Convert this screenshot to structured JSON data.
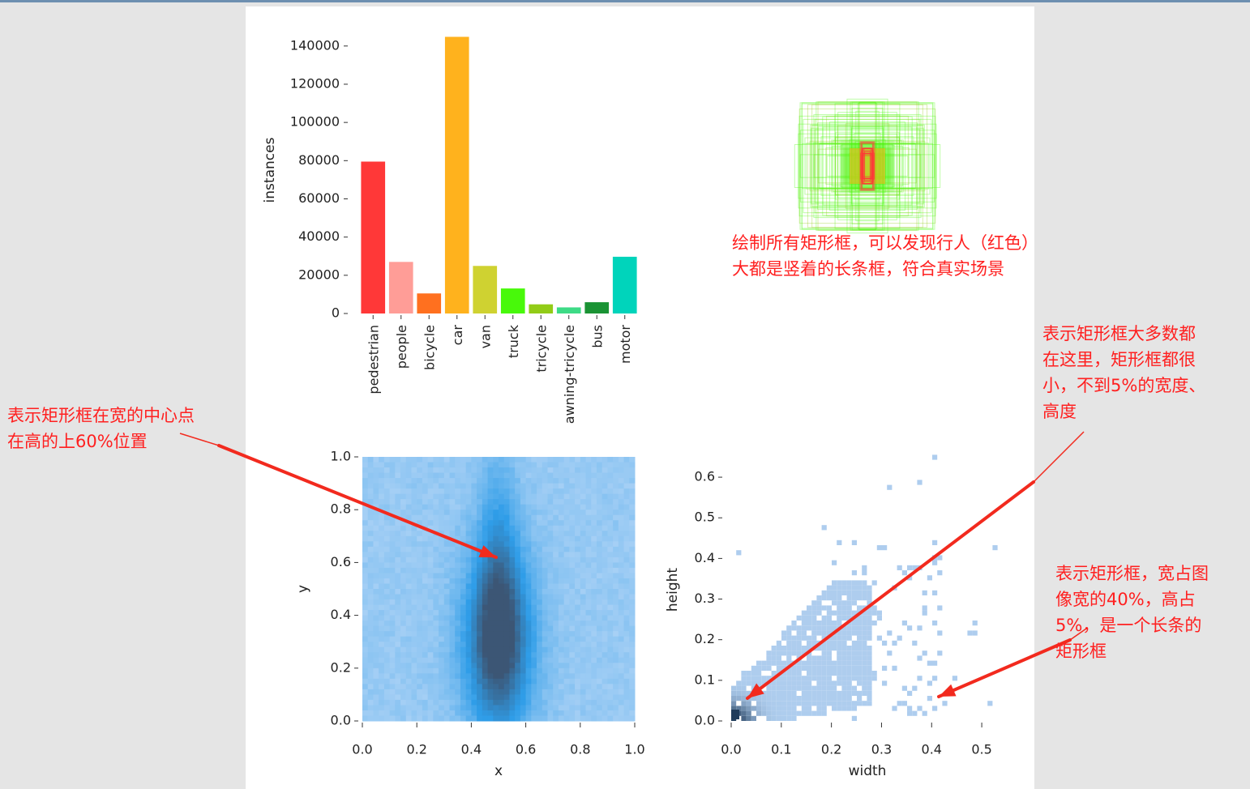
{
  "chart_data": [
    {
      "type": "bar",
      "ylabel": "instances",
      "categories": [
        "pedestrian",
        "people",
        "bicycle",
        "car",
        "van",
        "truck",
        "tricycle",
        "awning-tricycle",
        "bus",
        "motor"
      ],
      "values": [
        79500,
        27000,
        10500,
        144800,
        24900,
        13100,
        4800,
        3200,
        5900,
        29700
      ],
      "colors": [
        "#ff3838",
        "#ff9d97",
        "#ff701f",
        "#ffb21d",
        "#cfd231",
        "#48f90a",
        "#92cc17",
        "#3ddb86",
        "#1a9334",
        "#00d4bb"
      ],
      "ylim": [
        0,
        145000
      ],
      "yticks": [
        0,
        20000,
        40000,
        60000,
        80000,
        100000,
        120000,
        140000
      ]
    },
    {
      "type": "other",
      "description_colors": [
        "#ff3838",
        "#48f90a",
        "#ffb21d",
        "#92cc17"
      ]
    },
    {
      "type": "heatmap",
      "xlabel": "x",
      "ylabel": "y",
      "xlim": [
        0,
        1
      ],
      "ylim": [
        0,
        1
      ],
      "xticks": [
        0.0,
        0.2,
        0.4,
        0.6,
        0.8,
        1.0
      ],
      "yticks": [
        0.0,
        0.2,
        0.4,
        0.6,
        0.8,
        1.0
      ],
      "peak": {
        "x": 0.5,
        "y": 0.3
      },
      "colors": {
        "low": "#a7d0f5",
        "mid": "#2f9de8",
        "high": "#3c5675"
      }
    },
    {
      "type": "heatmap",
      "xlabel": "width",
      "ylabel": "height",
      "xlim": [
        0,
        0.55
      ],
      "ylim": [
        0,
        0.65
      ],
      "xticks": [
        0.0,
        0.1,
        0.2,
        0.3,
        0.4,
        0.5
      ],
      "yticks": [
        0.0,
        0.1,
        0.2,
        0.3,
        0.4,
        0.5,
        0.6
      ],
      "peak": {
        "x": 0.01,
        "y": 0.02
      },
      "colors": {
        "low": "#aecdee",
        "high": "#1f3b5a"
      }
    }
  ],
  "annotations": {
    "boxes_note": [
      "绘制所有矩形框，可以发现行人（红色）",
      "大都是竖着的长条框，符合真实场景"
    ],
    "small_boxes_note": [
      "表示矩形框大多数都",
      "在这里，矩形框都很",
      "小，不到5%的宽度、",
      "高度"
    ],
    "center_note": [
      "表示矩形框在宽的中心点",
      "在高的上60%位置"
    ],
    "wide_box_note": [
      "表示矩形框，宽占图",
      "像宽的40%，高占",
      "5%，是一个长条的",
      "矩形框"
    ]
  },
  "arrow_color": "#f22a1e"
}
